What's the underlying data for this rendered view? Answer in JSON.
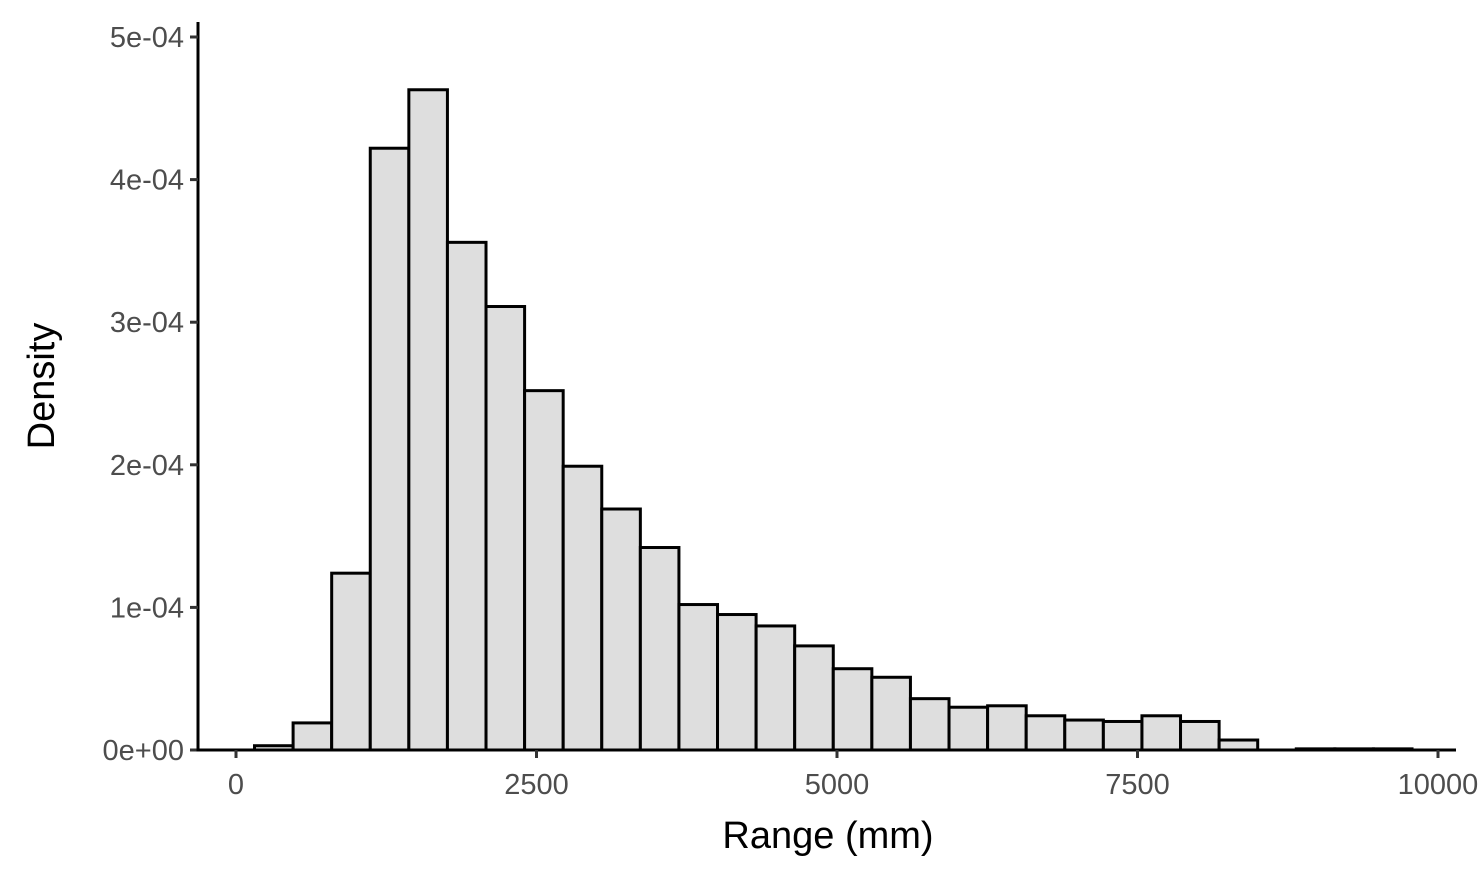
{
  "chart_data": {
    "type": "bar",
    "subtype": "histogram",
    "xlabel": "Range (mm)",
    "ylabel": "Density",
    "xlim": [
      -300,
      10000
    ],
    "ylim": [
      0,
      0.0005
    ],
    "x_ticks": [
      {
        "value": 0,
        "label": "0"
      },
      {
        "value": 2500,
        "label": "2500"
      },
      {
        "value": 5000,
        "label": "5000"
      },
      {
        "value": 7500,
        "label": "7500"
      },
      {
        "value": 10000,
        "label": "10000"
      }
    ],
    "y_ticks": [
      {
        "value": 0,
        "label": "0e+00"
      },
      {
        "value": 0.0001,
        "label": "1e-04"
      },
      {
        "value": 0.0002,
        "label": "2e-04"
      },
      {
        "value": 0.0003,
        "label": "3e-04"
      },
      {
        "value": 0.0004,
        "label": "4e-04"
      },
      {
        "value": 0.0005,
        "label": "5e-04"
      }
    ],
    "bin_width": 321,
    "bin_start": 154,
    "values": [
      3e-06,
      1.9e-05,
      0.000124,
      0.000422,
      0.000463,
      0.000356,
      0.000311,
      0.000252,
      0.000199,
      0.000169,
      0.000142,
      0.000102,
      9.5e-05,
      8.7e-05,
      7.3e-05,
      5.7e-05,
      5.1e-05,
      3.6e-05,
      3e-05,
      3.1e-05,
      2.4e-05,
      2.1e-05,
      2e-05,
      2.4e-05,
      2e-05,
      7e-06,
      0.0,
      8e-07,
      8e-07,
      8e-07
    ],
    "grid": false,
    "legend": "none",
    "bar_fill": "#dedede",
    "bar_stroke": "#000000"
  }
}
